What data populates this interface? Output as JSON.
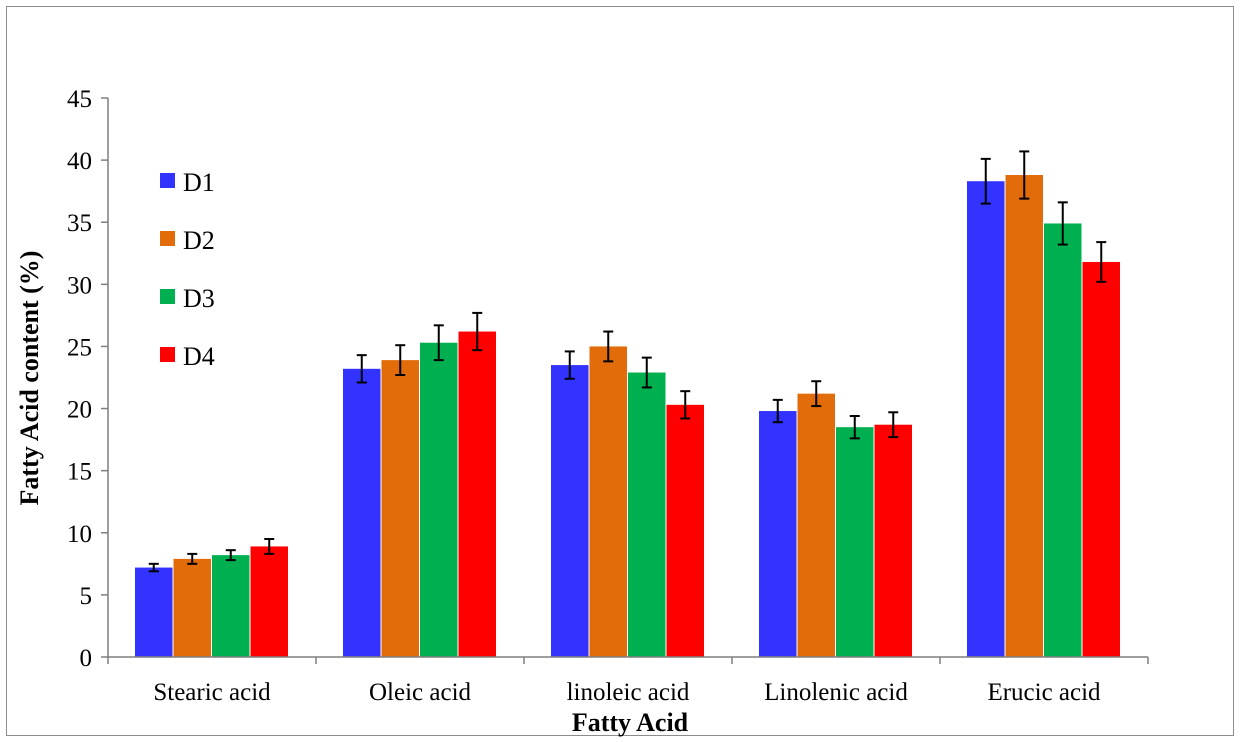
{
  "chart_data": {
    "type": "bar",
    "title": "",
    "xlabel": "Fatty Acid",
    "ylabel": "Fatty Acid content (%)",
    "ylim": [
      0,
      45
    ],
    "yticks": [
      0,
      5,
      10,
      15,
      20,
      25,
      30,
      35,
      40,
      45
    ],
    "categories": [
      "Stearic acid",
      "Oleic acid",
      "linoleic acid",
      "Linolenic acid",
      "Erucic acid"
    ],
    "series": [
      {
        "name": "D1",
        "color": "#3333ff",
        "values": [
          7.2,
          23.2,
          23.5,
          19.8,
          38.3
        ],
        "errors": [
          0.3,
          1.1,
          1.1,
          0.9,
          1.8
        ]
      },
      {
        "name": "D2",
        "color": "#e36c0a",
        "values": [
          7.9,
          23.9,
          25.0,
          21.2,
          38.8
        ],
        "errors": [
          0.4,
          1.2,
          1.2,
          1.0,
          1.9
        ]
      },
      {
        "name": "D3",
        "color": "#00b050",
        "values": [
          8.2,
          25.3,
          22.9,
          18.5,
          34.9
        ],
        "errors": [
          0.4,
          1.4,
          1.2,
          0.9,
          1.7
        ]
      },
      {
        "name": "D4",
        "color": "#ff0000",
        "values": [
          8.9,
          26.2,
          20.3,
          18.7,
          31.8
        ],
        "errors": [
          0.6,
          1.5,
          1.1,
          1.0,
          1.6
        ]
      }
    ],
    "legend_position": "top-left",
    "grid": false
  }
}
